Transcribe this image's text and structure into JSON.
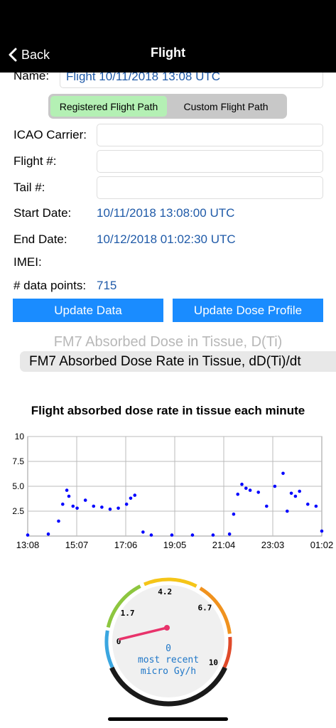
{
  "nav": {
    "back_label": "Back",
    "title": "Flight"
  },
  "form": {
    "name_label": "Name:",
    "name_value": "Flight 10/11/2018 13:08 UTC",
    "segments": [
      "Registered Flight Path",
      "Custom Flight Path"
    ],
    "selected_segment": 0,
    "icao_label": "ICAO Carrier:",
    "icao_value": "",
    "flight_label": "Flight #:",
    "flight_value": "",
    "tail_label": "Tail #:",
    "tail_value": "",
    "start_label": "Start Date:",
    "start_value": "10/11/2018 13:08:00 UTC",
    "end_label": "End Date:",
    "end_value": "10/12/2018 01:02:30 UTC",
    "imei_label": "IMEI:",
    "imei_value": "",
    "points_label": "# data points:",
    "points_value": "715"
  },
  "buttons": {
    "update_data": "Update Data",
    "update_dose": "Update Dose Profile"
  },
  "picker": {
    "above": "FM7 Absorbed Dose in Tissue, D(Ti)",
    "selected": "FM7 Absorbed Dose Rate in Tissue, dD(Ti)/dt"
  },
  "colors": {
    "accent": "#1a8cff",
    "value_text": "#1f5aa8",
    "segment_selected": "#b4f0b4",
    "data_points": "#0000ff",
    "gauge_value": "#1f77c8"
  },
  "chart_data": {
    "type": "scatter",
    "title": "Flight absorbed dose rate in tissue each minute",
    "x_tick_labels": [
      "13:08",
      "15:07",
      "17:06",
      "19:05",
      "21:04",
      "23:03",
      "01:02"
    ],
    "y_ticks": [
      10,
      7.5,
      5.0,
      2.5
    ],
    "y_tick_labels": [
      "10",
      "7.5",
      "5.0",
      "2.5"
    ],
    "ylim": [
      0,
      10
    ],
    "x_unit": "minutes since 13:08",
    "xlim": [
      0,
      714
    ],
    "grid": true,
    "series": [
      {
        "x": [
          0,
          50,
          75,
          85,
          95,
          100,
          110,
          120,
          140,
          160,
          180,
          200,
          220,
          240,
          250,
          260,
          280,
          300,
          350,
          400,
          450,
          490,
          500,
          510,
          520,
          530,
          540,
          560,
          580,
          600,
          620,
          630,
          640,
          650,
          660,
          680,
          700,
          714
        ],
        "y": [
          0.1,
          0.2,
          1.5,
          3.2,
          4.6,
          4.0,
          3.0,
          2.8,
          3.6,
          3.0,
          2.9,
          2.7,
          2.8,
          3.2,
          3.8,
          4.1,
          0.4,
          0.1,
          0.1,
          0.1,
          0.1,
          0.2,
          2.2,
          4.2,
          5.2,
          4.8,
          4.6,
          4.4,
          3.0,
          5.0,
          6.3,
          2.5,
          4.3,
          4.0,
          4.5,
          3.2,
          3.0,
          0.5
        ]
      }
    ]
  },
  "gauge": {
    "ticks": [
      "0",
      "1.7",
      "4.2",
      "6.7",
      "10"
    ],
    "value": 0,
    "value_text": "0",
    "unit_line1": "most recent",
    "unit_line2": "micro Gy/h",
    "max": 10,
    "arc_colors": [
      "#3aa6e0",
      "#8dc63f",
      "#f5c518",
      "#f0921e",
      "#e04a2a"
    ]
  }
}
